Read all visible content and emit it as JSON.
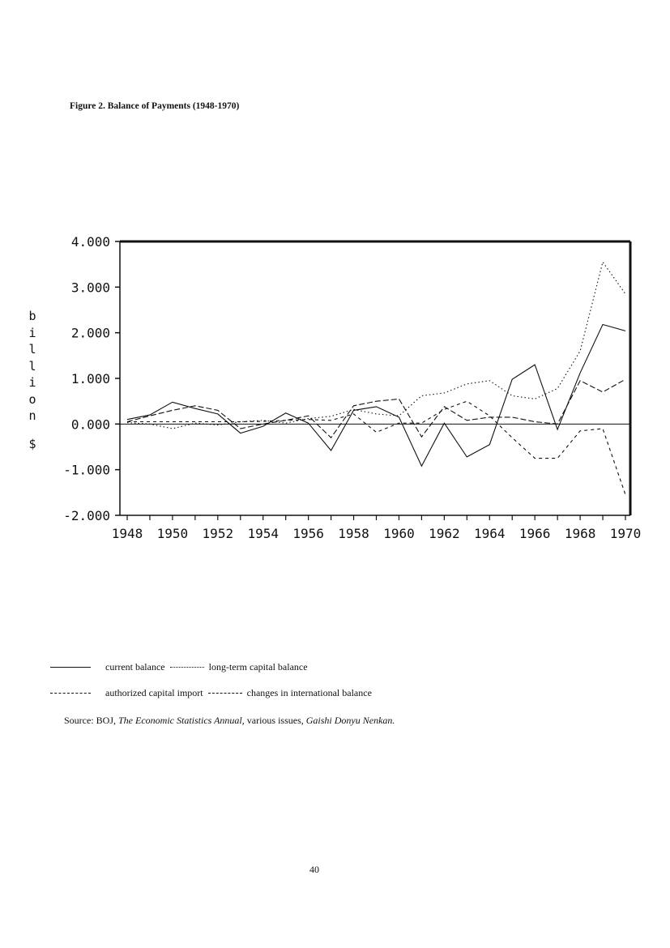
{
  "figure_title": "Figure 2. Balance of Payments (1948-1970)",
  "ylabel_letters": [
    "b",
    "i",
    "l",
    "l",
    "i",
    "o",
    "n"
  ],
  "ylabel_unit": "$",
  "chart_data": {
    "type": "line",
    "xlim": [
      1948,
      1970
    ],
    "ylim": [
      -2.0,
      4.0
    ],
    "yticks": [
      4.0,
      3.0,
      2.0,
      1.0,
      0.0,
      -1.0,
      -2.0
    ],
    "ytick_labels": [
      "4.000",
      "3.000",
      "2.000",
      "1.000",
      "0.000",
      "-1.000",
      "-2.000"
    ],
    "xtick_labels": [
      "1948",
      "1950",
      "1952",
      "1954",
      "1956",
      "1958",
      "1960",
      "1962",
      "1964",
      "1966",
      "1968",
      "1970"
    ],
    "grid": false,
    "x": [
      1948,
      1949,
      1950,
      1951,
      1952,
      1953,
      1954,
      1955,
      1956,
      1957,
      1958,
      1959,
      1960,
      1961,
      1962,
      1963,
      1964,
      1965,
      1966,
      1967,
      1968,
      1969,
      1970
    ],
    "series": [
      {
        "name": "current balance",
        "style": "solid",
        "values": [
          0.1,
          0.2,
          0.48,
          0.34,
          0.22,
          -0.2,
          -0.05,
          0.24,
          0.02,
          -0.58,
          0.3,
          0.38,
          0.15,
          -0.92,
          0.02,
          -0.72,
          -0.45,
          0.98,
          1.3,
          -0.12,
          1.12,
          2.18,
          2.04
        ]
      },
      {
        "name": "long-term capital balance",
        "style": "dotted",
        "values": [
          0.03,
          0.0,
          -0.1,
          0.02,
          -0.02,
          0.05,
          0.08,
          0.02,
          0.12,
          0.17,
          0.32,
          0.22,
          0.18,
          0.62,
          0.68,
          0.88,
          0.95,
          0.62,
          0.55,
          0.78,
          1.6,
          3.55,
          2.85
        ]
      },
      {
        "name": "authorized capital import",
        "style": "dashed",
        "values": [
          0.05,
          0.05,
          0.05,
          0.05,
          0.05,
          0.05,
          0.06,
          0.08,
          0.1,
          0.08,
          0.22,
          -0.18,
          0.02,
          0.02,
          0.32,
          0.5,
          0.18,
          -0.3,
          -0.75,
          -0.75,
          -0.15,
          -0.1,
          -1.55
        ]
      },
      {
        "name": "changes in international balance",
        "style": "longdash",
        "values": [
          0.05,
          0.18,
          0.3,
          0.4,
          0.3,
          -0.1,
          0.0,
          0.08,
          0.18,
          -0.3,
          0.4,
          0.5,
          0.55,
          -0.28,
          0.38,
          0.08,
          0.15,
          0.15,
          0.05,
          0.0,
          0.95,
          0.7,
          0.98
        ]
      }
    ]
  },
  "legend": {
    "row1": {
      "a": "current balance",
      "b": "long-term capital balance"
    },
    "row2": {
      "a": "authorized capital import",
      "b": "changes in international balance"
    }
  },
  "source": {
    "prefix": "Source: BOJ,",
    "title1": "The Economic Statistics Annual,",
    "middle": "various issues,",
    "title2": "Gaishi Donyu Nenkan."
  },
  "page_number": "40"
}
